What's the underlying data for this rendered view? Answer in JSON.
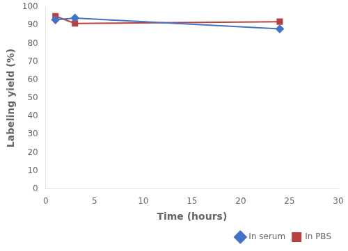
{
  "chart_data": {
    "type": "line",
    "xlabel": "Time (hours)",
    "ylabel": "Labeling yield (%)",
    "x": [
      1,
      3,
      24
    ],
    "series": [
      {
        "name": "In serum",
        "color": "#4472C4",
        "marker": "diamond",
        "values": [
          93,
          94,
          88
        ]
      },
      {
        "name": "In PBS",
        "color": "#B94040",
        "marker": "square",
        "values": [
          95,
          91,
          92
        ]
      }
    ],
    "xlim": [
      0,
      30
    ],
    "ylim": [
      0,
      100
    ],
    "xticks": [
      0,
      5,
      10,
      15,
      20,
      25,
      30
    ],
    "yticks": [
      0,
      10,
      20,
      30,
      40,
      50,
      60,
      70,
      80,
      90,
      100
    ],
    "grid": false,
    "legend": "lower right"
  }
}
